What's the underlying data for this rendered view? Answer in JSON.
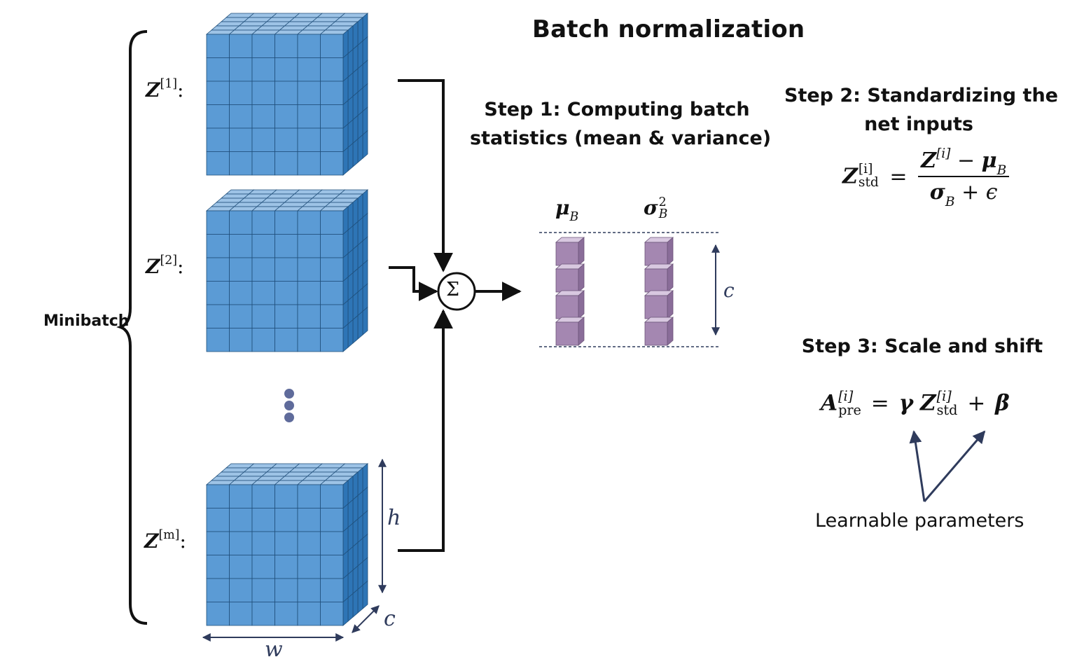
{
  "title": "Batch normalization",
  "minibatch_label": "Minibatch",
  "tensor_labels": [
    "Z",
    "Z",
    "Z"
  ],
  "tensor_indices": [
    "[1]",
    "[2]",
    "[m]"
  ],
  "tensor_colon": ":",
  "dim_labels": {
    "h": "h",
    "w": "w",
    "c": "c"
  },
  "sum_symbol": "Σ",
  "step1": {
    "line1": "Step 1: Computing batch",
    "line2": "statistics (mean & variance)"
  },
  "stats": {
    "mu": "μ",
    "mu_sub": "B",
    "sigma": "σ",
    "sigma_sup": "2",
    "sigma_sub": "B",
    "channel_label": "c"
  },
  "step2": {
    "line1": "Step 2: Standardizing the",
    "line2": "net inputs",
    "lhs": "Z",
    "lhs_sup": "[i]",
    "lhs_sub": "std",
    "eq": "=",
    "num_z": "Z",
    "num_sup": "[i]",
    "num_minus": "−",
    "num_mu": "μ",
    "num_mu_sub": "B",
    "den_sigma": "σ",
    "den_sigma_sub": "B",
    "den_plus": "+",
    "den_eps": "ϵ"
  },
  "step3": {
    "title": "Step 3: Scale and shift",
    "a": "A",
    "a_sup": "[i]",
    "a_sub": "pre",
    "eq": "=",
    "gamma": "γ",
    "z": "Z",
    "z_sup": "[i]",
    "z_sub": "std",
    "plus": "+",
    "beta": "β",
    "learnable": "Learnable parameters"
  },
  "colors": {
    "cube_front": "#5b9bd5",
    "cube_top": "#9dc3e6",
    "cube_side": "#2e75b6",
    "cube_edge": "#1f4e79",
    "stat_front": "#a487b1",
    "stat_top": "#d8c8e0",
    "stat_side": "#8a6d99",
    "line": "#111111",
    "annot": "#2f3b5c",
    "dots": "#5f6b9b"
  }
}
